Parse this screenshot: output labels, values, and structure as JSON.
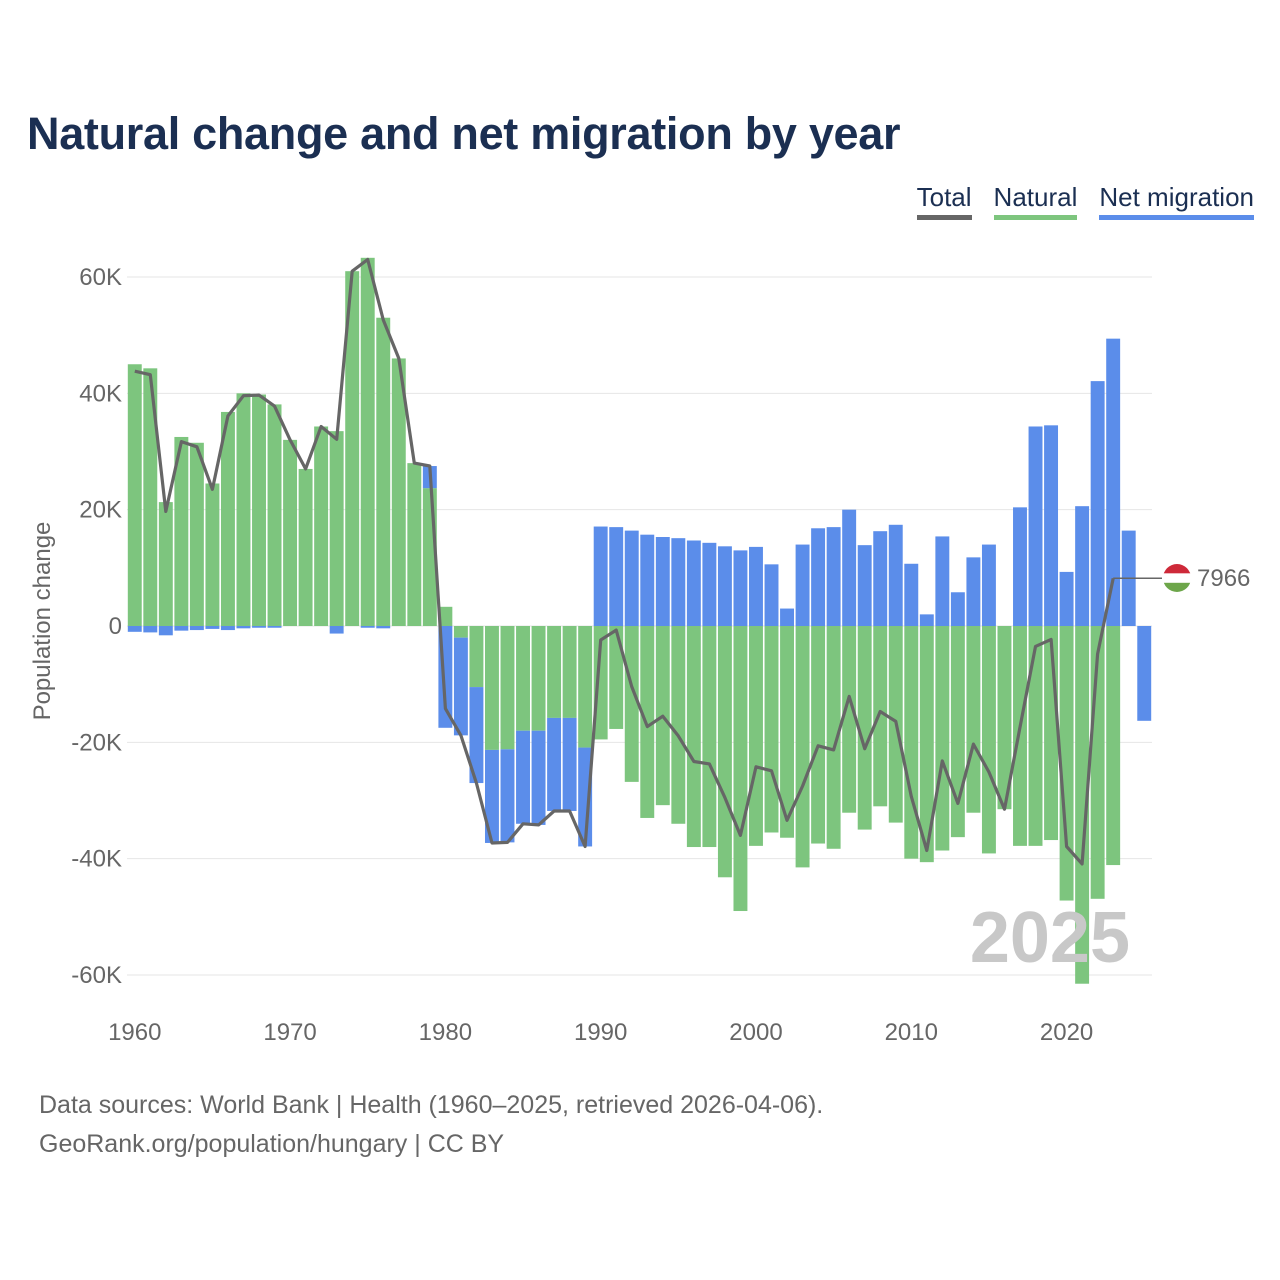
{
  "title": "Natural change and net migration by year",
  "legend": {
    "total": "Total",
    "natural": "Natural",
    "net_migration": "Net migration"
  },
  "colors": {
    "natural": "#7dc57e",
    "migration": "#5b8dea",
    "total": "#666666",
    "title": "#1b2f52"
  },
  "chart_data": {
    "type": "bar",
    "stacked": true,
    "title": "Natural change and net migration by year",
    "ylabel": "Population change",
    "xlabel": "",
    "ylim": [
      -65000,
      65000
    ],
    "y_ticks": [
      60000,
      40000,
      20000,
      0,
      -20000,
      -40000,
      -60000
    ],
    "y_tick_labels": [
      "60K",
      "40K",
      "20K",
      "0",
      "-20K",
      "-40K",
      "-60K"
    ],
    "x_tick_labels": [
      "1960",
      "1970",
      "1980",
      "1990",
      "2000",
      "2010",
      "2020"
    ],
    "years": [
      1960,
      1961,
      1962,
      1963,
      1964,
      1965,
      1966,
      1967,
      1968,
      1969,
      1970,
      1971,
      1972,
      1973,
      1974,
      1975,
      1976,
      1977,
      1978,
      1979,
      1980,
      1981,
      1982,
      1983,
      1984,
      1985,
      1986,
      1987,
      1988,
      1989,
      1990,
      1991,
      1992,
      1993,
      1994,
      1995,
      1996,
      1997,
      1998,
      1999,
      2000,
      2001,
      2002,
      2003,
      2004,
      2005,
      2006,
      2007,
      2008,
      2009,
      2010,
      2011,
      2012,
      2013,
      2014,
      2015,
      2016,
      2017,
      2018,
      2019,
      2020,
      2021,
      2022,
      2023,
      2024,
      2025
    ],
    "series": [
      {
        "name": "Natural",
        "values": [
          45000,
          44300,
          21300,
          32500,
          31500,
          24500,
          36800,
          40000,
          39800,
          38100,
          32000,
          27000,
          34300,
          33500,
          61000,
          63300,
          53000,
          46000,
          28000,
          23700,
          3300,
          -2000,
          -10500,
          -21300,
          -21200,
          -18000,
          -18000,
          -15800,
          -15800,
          -20900,
          -19500,
          -17700,
          -26800,
          -33000,
          -30800,
          -34000,
          -38000,
          -38000,
          -43200,
          -49000,
          -37800,
          -35500,
          -36400,
          -41500,
          -37400,
          -38300,
          -32100,
          -35000,
          -31000,
          -33800,
          -40000,
          -40600,
          -38600,
          -36300,
          -32100,
          -39100,
          -31500,
          -37800,
          -37800,
          -36800,
          -47200,
          -61500,
          -46900,
          -41100,
          0,
          0
        ]
      },
      {
        "name": "Net migration",
        "values": [
          -1000,
          -1100,
          -1600,
          -800,
          -700,
          -500,
          -700,
          -400,
          -300,
          -300,
          0,
          0,
          0,
          -1300,
          0,
          -300,
          -400,
          0,
          0,
          3800,
          -17500,
          -16800,
          -16500,
          -16000,
          -16000,
          -16000,
          -16200,
          -16000,
          -16000,
          -17000,
          17100,
          17000,
          16400,
          15700,
          15300,
          15100,
          14700,
          14300,
          13700,
          13000,
          13600,
          10600,
          3000,
          14000,
          16800,
          17000,
          20000,
          13900,
          16300,
          17400,
          10700,
          2000,
          15400,
          5800,
          11800,
          14000,
          0,
          20400,
          34300,
          34500,
          9300,
          20600,
          42100,
          49400,
          16400,
          -16300
        ]
      },
      {
        "name": "Total",
        "values": [
          43800,
          43200,
          19700,
          31700,
          30800,
          23500,
          36100,
          39600,
          39700,
          37800,
          32000,
          27000,
          34300,
          32100,
          61000,
          63000,
          52600,
          46000,
          28000,
          27500,
          -14200,
          -18800,
          -27000,
          -37300,
          -37200,
          -34000,
          -34200,
          -31800,
          -31800,
          -37900,
          -2400,
          -700,
          -10400,
          -17300,
          -15500,
          -18900,
          -23300,
          -23700,
          -29500,
          -36000,
          -24200,
          -24900,
          -33400,
          -27500,
          -20600,
          -21300,
          -12100,
          -21100,
          -14700,
          -16400,
          -29300,
          -38600,
          -23200,
          -30500,
          -20300,
          -25100,
          -31500,
          -17400,
          -3500,
          -2300,
          -37900,
          -40900,
          -4800,
          8200,
          7966,
          7966
        ]
      }
    ],
    "highlight": {
      "year": 2025,
      "value": "7966",
      "label": "2025"
    }
  },
  "footer": {
    "line1": "Data sources: World Bank | Health (1960–2025, retrieved 2026-04-06).",
    "line2": "GeoRank.org/population/hungary | CC BY"
  }
}
